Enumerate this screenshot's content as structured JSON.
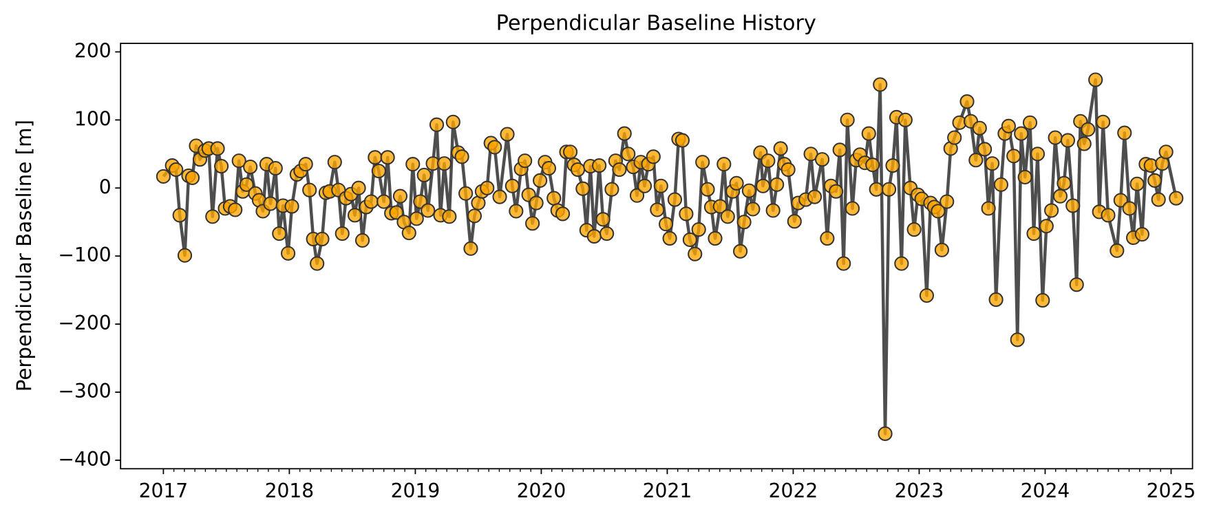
{
  "chart_data": {
    "type": "line",
    "title": "Perpendicular Baseline History",
    "ylabel": "Perpendicular Baseline [m]",
    "color": "#ffa500",
    "edge_color": "#333333",
    "line_color": "#444444",
    "xlim": [
      2016.66,
      2025.17
    ],
    "ylim": [
      -412.5,
      212.5
    ],
    "xticks": [
      2017,
      2018,
      2019,
      2020,
      2021,
      2022,
      2023,
      2024,
      2025
    ],
    "yticks": [
      {
        "value": -400,
        "label": "−400"
      },
      {
        "value": -300,
        "label": "−300"
      },
      {
        "value": -200,
        "label": "−200"
      },
      {
        "value": -100,
        "label": "−100"
      },
      0,
      100,
      200
    ],
    "grid": false,
    "x": [
      2017.0,
      2017.07,
      2017.1,
      2017.13,
      2017.17,
      2017.2,
      2017.23,
      2017.26,
      2017.29,
      2017.33,
      2017.36,
      2017.39,
      2017.43,
      2017.46,
      2017.49,
      2017.53,
      2017.57,
      2017.6,
      2017.63,
      2017.66,
      2017.69,
      2017.73,
      2017.76,
      2017.79,
      2017.82,
      2017.85,
      2017.89,
      2017.92,
      2017.95,
      2017.99,
      2018.02,
      2018.06,
      2018.09,
      2018.13,
      2018.16,
      2018.19,
      2018.22,
      2018.26,
      2018.29,
      2018.32,
      2018.36,
      2018.39,
      2018.42,
      2018.45,
      2018.49,
      2018.52,
      2018.55,
      2018.58,
      2018.61,
      2018.65,
      2018.68,
      2018.71,
      2018.75,
      2018.78,
      2018.81,
      2018.85,
      2018.88,
      2018.91,
      2018.95,
      2018.98,
      2019.01,
      2019.04,
      2019.07,
      2019.1,
      2019.14,
      2019.17,
      2019.2,
      2019.23,
      2019.27,
      2019.3,
      2019.34,
      2019.37,
      2019.4,
      2019.44,
      2019.47,
      2019.5,
      2019.53,
      2019.57,
      2019.6,
      2019.63,
      2019.67,
      2019.73,
      2019.77,
      2019.8,
      2019.84,
      2019.87,
      2019.9,
      2019.93,
      2019.96,
      2019.99,
      2020.03,
      2020.06,
      2020.1,
      2020.13,
      2020.17,
      2020.2,
      2020.23,
      2020.26,
      2020.29,
      2020.33,
      2020.36,
      2020.39,
      2020.42,
      2020.46,
      2020.49,
      2020.52,
      2020.56,
      2020.59,
      2020.62,
      2020.66,
      2020.69,
      2020.73,
      2020.76,
      2020.79,
      2020.82,
      2020.85,
      2020.89,
      2020.92,
      2020.95,
      2020.99,
      2021.02,
      2021.06,
      2021.09,
      2021.12,
      2021.15,
      2021.18,
      2021.22,
      2021.25,
      2021.28,
      2021.32,
      2021.35,
      2021.38,
      2021.42,
      2021.45,
      2021.48,
      2021.52,
      2021.55,
      2021.58,
      2021.61,
      2021.65,
      2021.68,
      2021.74,
      2021.76,
      2021.8,
      2021.84,
      2021.87,
      2021.9,
      2021.93,
      2021.96,
      2022.01,
      2022.04,
      2022.1,
      2022.14,
      2022.17,
      2022.23,
      2022.27,
      2022.3,
      2022.34,
      2022.37,
      2022.4,
      2022.43,
      2022.47,
      2022.5,
      2022.53,
      2022.57,
      2022.6,
      2022.63,
      2022.66,
      2022.69,
      2022.73,
      2022.76,
      2022.79,
      2022.82,
      2022.86,
      2022.89,
      2022.93,
      2022.96,
      2022.99,
      2023.02,
      2023.06,
      2023.09,
      2023.12,
      2023.15,
      2023.18,
      2023.22,
      2023.25,
      2023.28,
      2023.32,
      2023.38,
      2023.41,
      2023.45,
      2023.48,
      2023.52,
      2023.55,
      2023.58,
      2023.61,
      2023.65,
      2023.68,
      2023.71,
      2023.75,
      2023.78,
      2023.81,
      2023.84,
      2023.88,
      2023.91,
      2023.94,
      2023.98,
      2024.01,
      2024.05,
      2024.08,
      2024.12,
      2024.15,
      2024.18,
      2024.22,
      2024.25,
      2024.28,
      2024.31,
      2024.34,
      2024.4,
      2024.43,
      2024.46,
      2024.5,
      2024.57,
      2024.6,
      2024.63,
      2024.67,
      2024.7,
      2024.73,
      2024.77,
      2024.8,
      2024.84,
      2024.87,
      2024.9,
      2024.93,
      2024.96,
      2025.04
    ],
    "values": [
      17,
      33,
      27,
      -40,
      -99,
      18,
      15,
      62,
      42,
      55,
      58,
      -42,
      58,
      32,
      -30,
      -27,
      -32,
      40,
      -5,
      5,
      31,
      -8,
      -18,
      -34,
      35,
      -23,
      29,
      -67,
      -26,
      -96,
      -27,
      20,
      25,
      35,
      -3,
      -75,
      -111,
      -75,
      -7,
      -5,
      38,
      -3,
      -67,
      -15,
      -9,
      -40,
      0,
      -77,
      -28,
      -20,
      45,
      25,
      -20,
      45,
      -37,
      -36,
      -12,
      -50,
      -66,
      35,
      -45,
      -20,
      19,
      -33,
      36,
      93,
      -40,
      36,
      -42,
      97,
      52,
      46,
      -8,
      -89,
      -41,
      -22,
      -5,
      0,
      66,
      60,
      -13,
      79,
      3,
      -34,
      28,
      40,
      -10,
      -52,
      -22,
      11,
      38,
      29,
      -15,
      -33,
      -38,
      53,
      53,
      34,
      27,
      -1,
      -62,
      32,
      -71,
      33,
      -46,
      -67,
      -2,
      40,
      27,
      80,
      50,
      31,
      -11,
      38,
      3,
      35,
      46,
      -32,
      3,
      -53,
      -74,
      -17,
      72,
      70,
      -38,
      -76,
      -97,
      -61,
      38,
      -2,
      -28,
      -74,
      -27,
      35,
      -42,
      -5,
      7,
      -93,
      -50,
      -4,
      -31,
      52,
      3,
      40,
      -33,
      5,
      58,
      35,
      27,
      -49,
      -22,
      -17,
      50,
      -13,
      42,
      -74,
      3,
      -5,
      56,
      -111,
      100,
      -30,
      41,
      49,
      37,
      80,
      34,
      -2,
      152,
      -361,
      -2,
      33,
      104,
      -111,
      100,
      0,
      -61,
      -10,
      -16,
      -158,
      -22,
      -28,
      -34,
      -91,
      -20,
      58,
      74,
      96,
      127,
      98,
      41,
      88,
      57,
      -30,
      36,
      -164,
      5,
      80,
      91,
      47,
      -223,
      80,
      16,
      96,
      -67,
      50,
      -165,
      -56,
      -33,
      74,
      -12,
      7,
      70,
      -26,
      -142,
      98,
      65,
      86,
      159,
      -35,
      97,
      -40,
      -92,
      -18,
      81,
      -30,
      -73,
      6,
      -68,
      35,
      33,
      11,
      -17,
      36,
      53,
      -15
    ]
  }
}
